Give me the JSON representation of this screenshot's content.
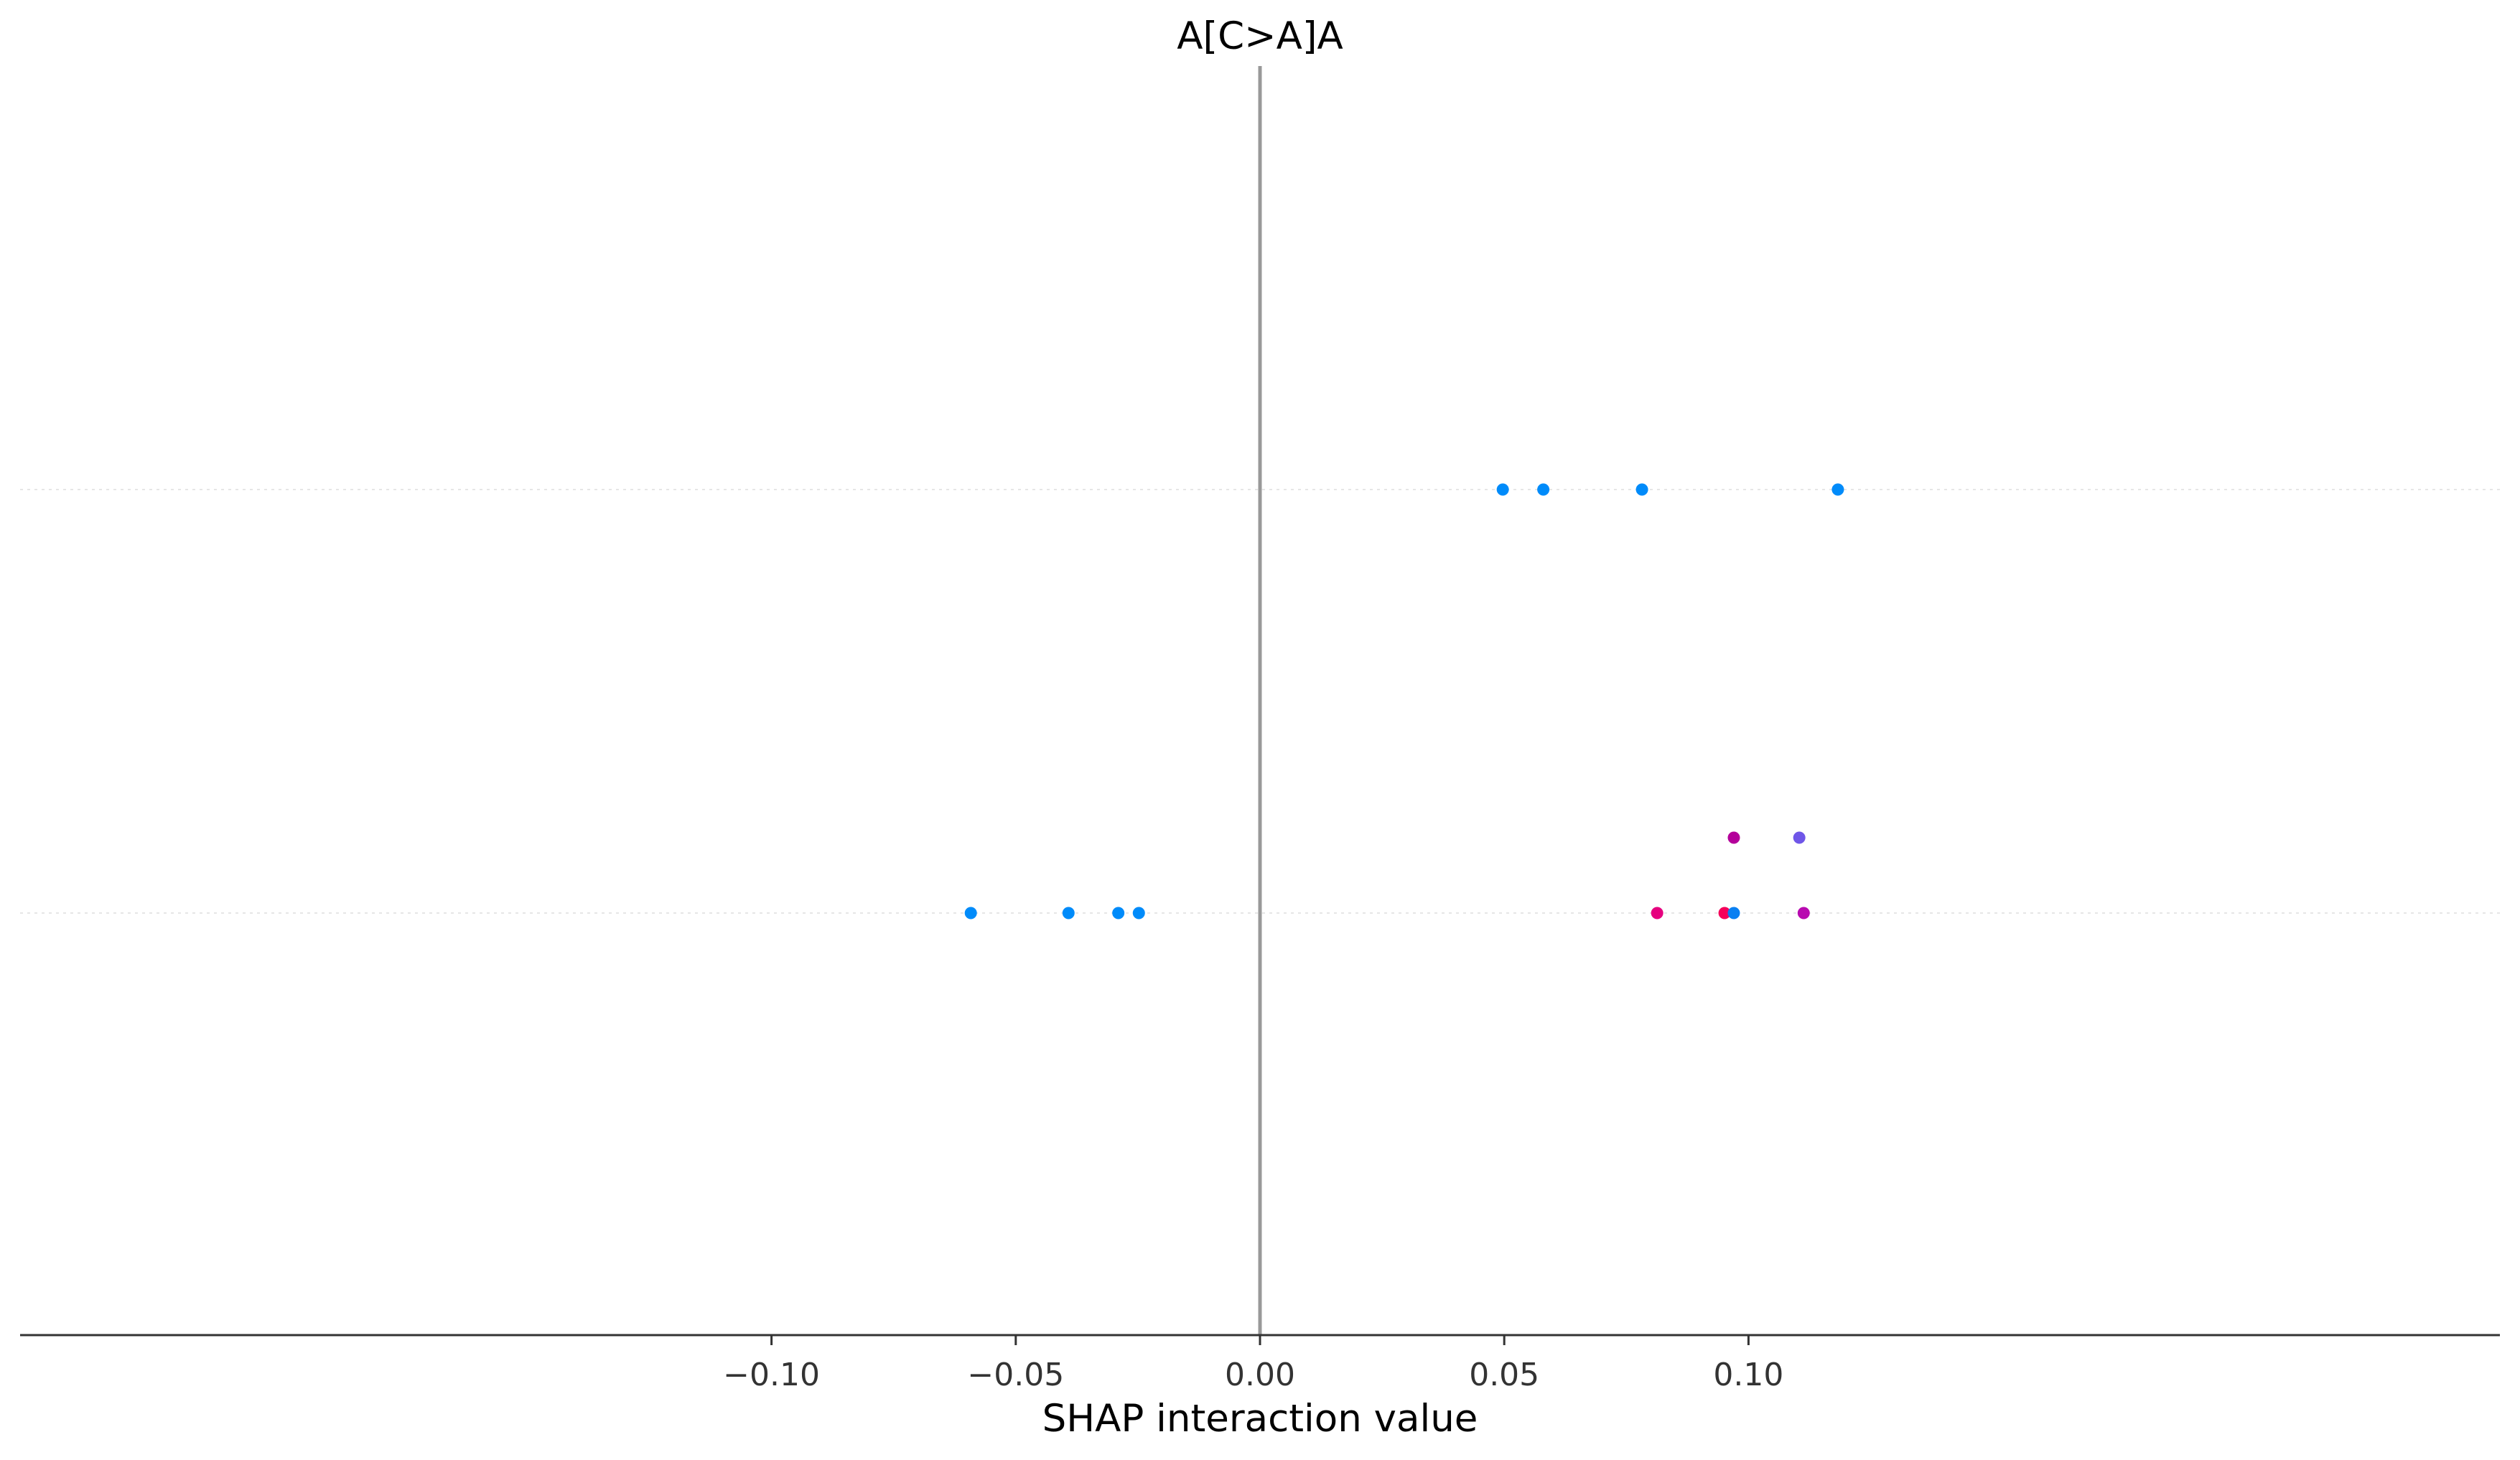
{
  "chart_data": {
    "type": "scatter",
    "title": "A[C>A]A",
    "xlabel": "SHAP interaction value",
    "ylabel": "",
    "xlim": [
      -0.127,
      0.127
    ],
    "xticks": [
      -0.1,
      -0.05,
      0.0,
      0.05,
      0.1
    ],
    "xtick_labels": [
      "−0.10",
      "−0.05",
      "0.00",
      "0.05",
      "0.10"
    ],
    "grid": false,
    "zero_line": true,
    "rows": [
      {
        "row": 0,
        "points": [
          {
            "x": 0.0497,
            "offset": 0,
            "color": "#008bfa"
          },
          {
            "x": 0.058,
            "offset": 0,
            "color": "#008bfa"
          },
          {
            "x": 0.0782,
            "offset": 0,
            "color": "#008bfa"
          },
          {
            "x": 0.1183,
            "offset": 0,
            "color": "#008bfa"
          }
        ]
      },
      {
        "row": 1,
        "points": [
          {
            "x": -0.0592,
            "offset": 0,
            "color": "#008bfa"
          },
          {
            "x": -0.0392,
            "offset": 0,
            "color": "#008bfa"
          },
          {
            "x": -0.029,
            "offset": 0,
            "color": "#008bfa"
          },
          {
            "x": -0.0248,
            "offset": 0,
            "color": "#008bfa"
          },
          {
            "x": 0.0813,
            "offset": 0,
            "color": "#e6007f"
          },
          {
            "x": 0.0951,
            "offset": 0,
            "color": "#f5005a"
          },
          {
            "x": 0.097,
            "offset": 0,
            "color": "#0a80f2"
          },
          {
            "x": 0.1113,
            "offset": 0,
            "color": "#b80ab0"
          },
          {
            "x": 0.097,
            "offset": 1,
            "color": "#b4009a"
          },
          {
            "x": 0.1104,
            "offset": 1,
            "color": "#6f56e8"
          }
        ]
      }
    ]
  },
  "colors": {
    "axis": "#333333",
    "zero_line": "#999999",
    "row_guides": "#e6e6e6"
  }
}
